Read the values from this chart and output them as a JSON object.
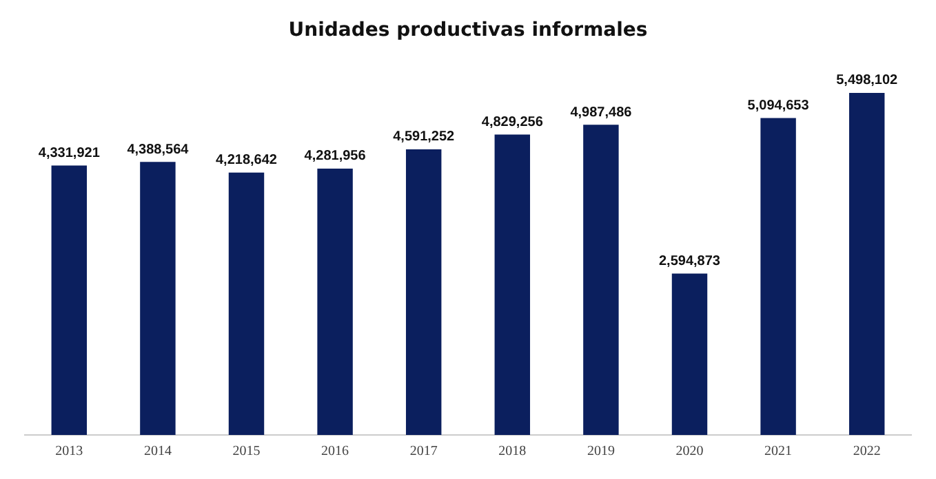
{
  "chart_data": {
    "type": "bar",
    "title": "Unidades productivas informales",
    "categories": [
      "2013",
      "2014",
      "2015",
      "2016",
      "2017",
      "2018",
      "2019",
      "2020",
      "2021",
      "2022"
    ],
    "values": [
      4331921,
      4388564,
      4218642,
      4281956,
      4591252,
      4829256,
      4987486,
      2594873,
      5094653,
      5498102
    ],
    "value_labels": [
      "4,331,921",
      "4,388,564",
      "4,218,642",
      "4,281,956",
      "4,591,252",
      "4,829,256",
      "4,987,486",
      "2,594,873",
      "5,094,653",
      "5,498,102"
    ],
    "color": "#0b1f5e",
    "grid": false,
    "legend": false
  }
}
